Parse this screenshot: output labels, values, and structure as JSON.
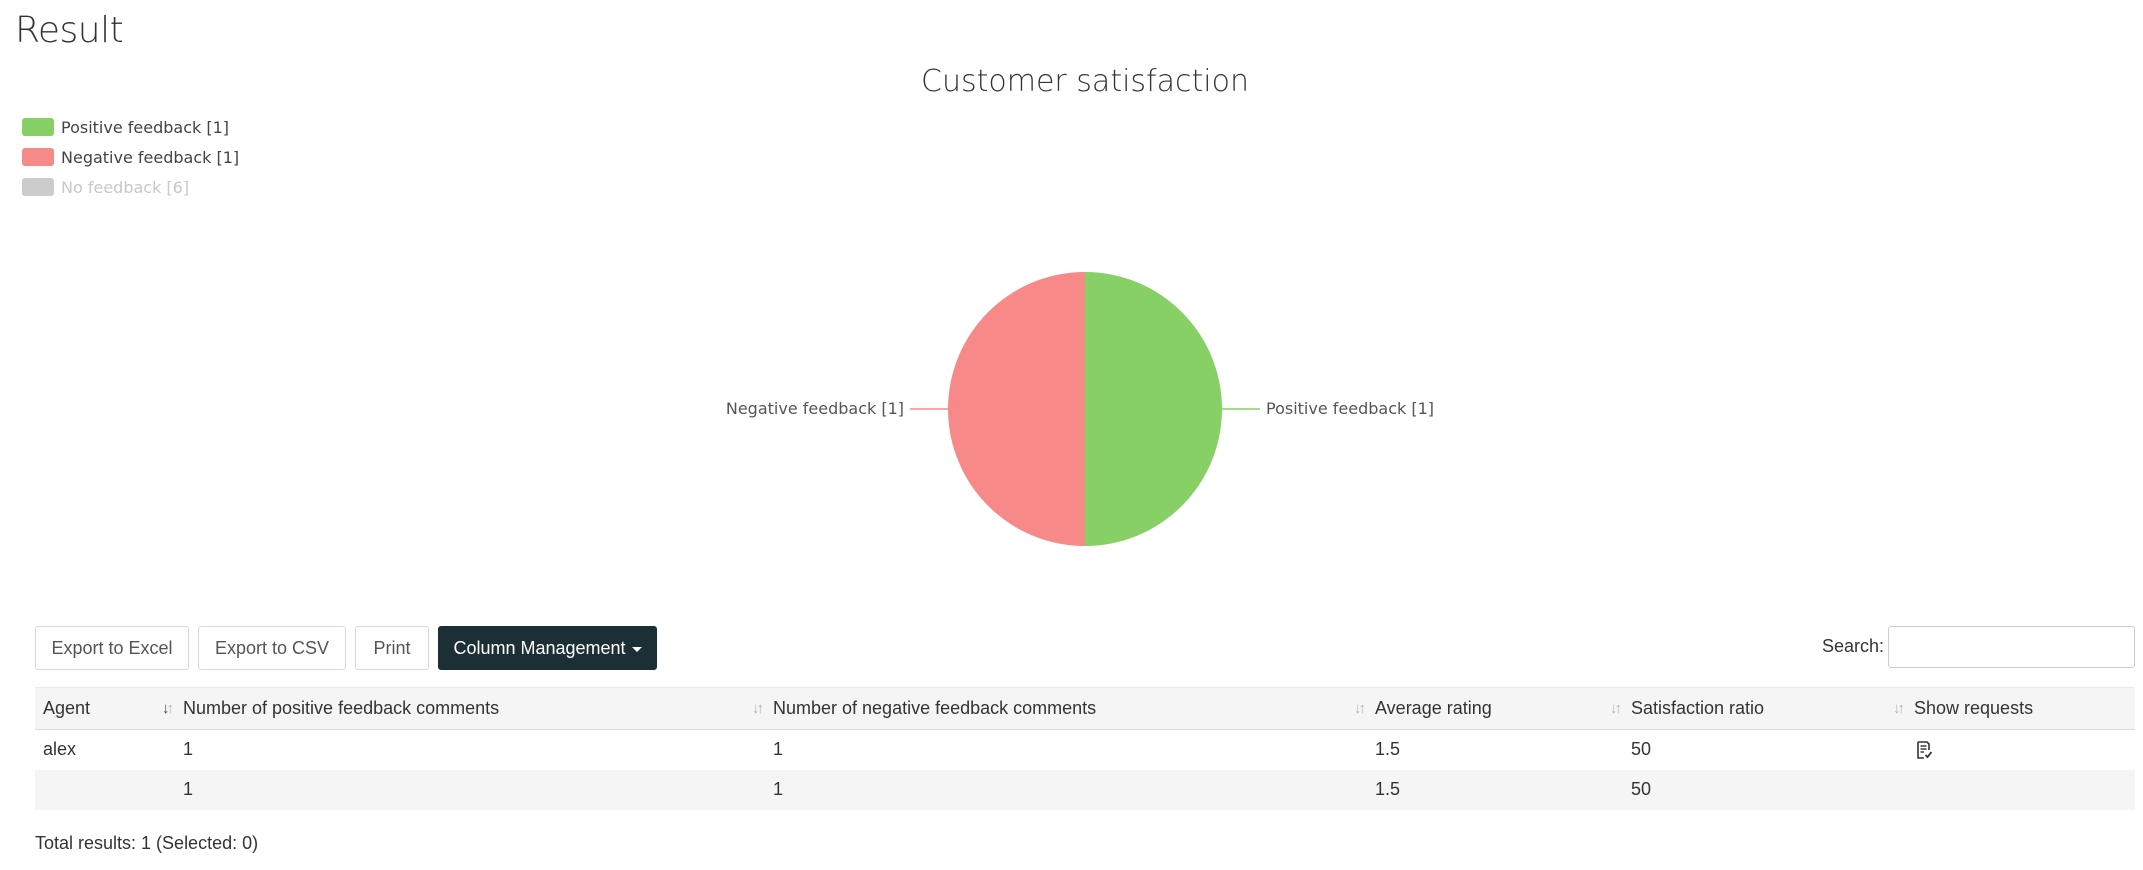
{
  "page": {
    "title": "Result"
  },
  "chart_data": {
    "type": "pie",
    "title": "Customer satisfaction",
    "legend_position": "top-left",
    "slices": [
      {
        "label": "Positive feedback [1]",
        "value": 1,
        "color": "#87d065",
        "visible": true
      },
      {
        "label": "Negative feedback [1]",
        "value": 1,
        "color": "#f78989",
        "visible": true
      },
      {
        "label": "No feedback [6]",
        "value": 6,
        "color": "#cccccc",
        "visible": false
      }
    ]
  },
  "toolbar": {
    "export_excel": "Export to Excel",
    "export_csv": "Export to CSV",
    "print": "Print",
    "column_management": "Column Management",
    "search_label": "Search:",
    "search_value": ""
  },
  "table": {
    "columns": [
      "Agent",
      "Number of positive feedback comments",
      "Number of negative feedback comments",
      "Average rating",
      "Satisfaction ratio",
      "Show requests"
    ],
    "rows": [
      {
        "agent": "alex",
        "positive": "1",
        "negative": "1",
        "avg_rating": "1.5",
        "ratio": "50",
        "show_requests_icon": "document-check-icon"
      }
    ],
    "totals": {
      "agent": "",
      "positive": "1",
      "negative": "1",
      "avg_rating": "1.5",
      "ratio": "50"
    }
  },
  "footer": {
    "total_results": "Total results: 1 (Selected: 0)"
  }
}
